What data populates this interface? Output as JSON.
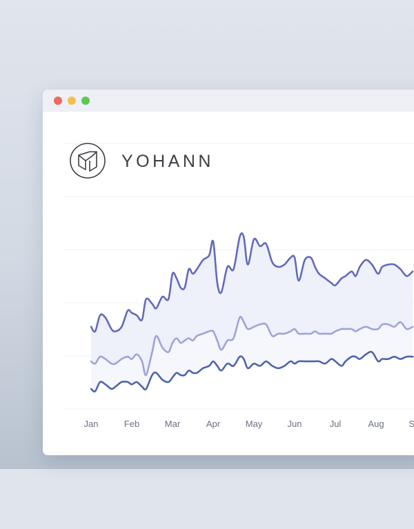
{
  "window": {
    "controls": [
      "close",
      "minimize",
      "maximize"
    ]
  },
  "brand": {
    "name": "YOHANN",
    "logo_icon": "yohann-logo-icon"
  },
  "chart_data": {
    "type": "area",
    "title": "",
    "xlabel": "",
    "ylabel": "",
    "categories": [
      "Jan",
      "Feb",
      "Mar",
      "Apr",
      "May",
      "Jun",
      "Jul",
      "Aug",
      "Sep"
    ],
    "ylim": [
      0,
      100
    ],
    "grid": true,
    "legend": "none",
    "x": [
      0,
      0.1,
      0.22,
      0.35,
      0.5,
      0.6,
      0.75,
      0.9,
      1.0,
      1.12,
      1.25,
      1.35,
      1.5,
      1.6,
      1.75,
      1.9,
      2.0,
      2.1,
      2.2,
      2.3,
      2.4,
      2.5,
      2.6,
      2.75,
      2.9,
      3.0,
      3.1,
      3.2,
      3.35,
      3.5,
      3.65,
      3.75,
      3.85,
      4.0,
      4.15,
      4.3,
      4.45,
      4.6,
      4.75,
      4.9,
      5.0,
      5.1,
      5.25,
      5.4,
      5.5,
      5.6,
      5.75,
      5.9,
      6.0,
      6.15,
      6.25,
      6.4,
      6.5,
      6.6,
      6.75,
      6.9,
      7.05,
      7.15,
      7.3,
      7.45,
      7.6,
      7.75,
      7.9
    ],
    "series": [
      {
        "color": "#6369b8",
        "fill": "#eef0fa",
        "values": [
          36,
          34,
          41,
          40,
          35,
          34,
          36,
          43,
          42,
          41,
          39,
          48,
          46,
          44,
          49,
          48,
          59,
          57,
          53,
          53,
          61,
          59,
          61,
          65,
          67,
          73,
          55,
          51,
          62,
          61,
          75,
          75,
          63,
          74,
          71,
          72,
          64,
          62,
          63,
          66,
          66,
          56,
          65,
          66,
          62,
          59,
          57,
          55,
          54,
          57,
          58,
          60,
          58,
          62,
          65,
          63,
          59,
          62,
          63,
          63,
          61,
          58,
          60
        ]
      },
      {
        "color": "#9ea3d8",
        "fill": "#f6f7fc",
        "values": [
          21,
          20,
          23,
          22,
          20,
          20,
          22,
          23,
          22,
          24,
          21,
          15,
          25,
          32,
          27,
          25,
          29,
          31,
          29,
          30,
          31,
          30,
          32,
          33,
          34,
          34,
          30,
          26,
          30,
          31,
          40,
          38,
          35,
          36,
          37,
          37,
          32,
          33,
          33,
          34,
          35,
          33,
          33,
          33,
          34,
          33,
          33,
          33,
          34,
          35,
          35,
          35,
          34,
          35,
          36,
          35,
          35,
          37,
          37,
          36,
          38,
          35,
          36
        ]
      },
      {
        "color": "#4f63ad",
        "fill": "none",
        "values": [
          9,
          8,
          12,
          11,
          9,
          10,
          12,
          12,
          11,
          12,
          10,
          9,
          15,
          16,
          13,
          12,
          14,
          16,
          15,
          15,
          17,
          16,
          16,
          18,
          19,
          21,
          19,
          17,
          20,
          19,
          23,
          22,
          18,
          20,
          19,
          21,
          19,
          18,
          19,
          21,
          20,
          21,
          21,
          21,
          21,
          21,
          20,
          22,
          21,
          19,
          21,
          23,
          23,
          22,
          24,
          25,
          21,
          22,
          22,
          23,
          22,
          23,
          23
        ]
      }
    ]
  }
}
